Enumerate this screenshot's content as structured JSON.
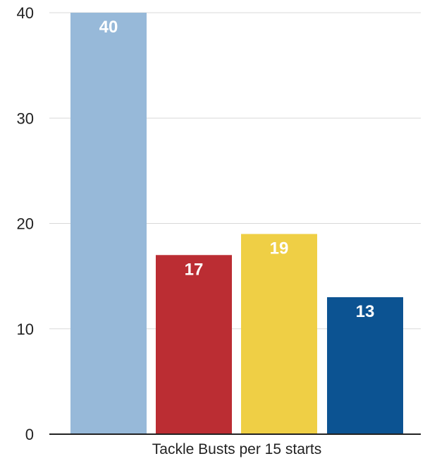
{
  "chart_data": {
    "type": "bar",
    "categories": [
      "",
      "",
      "",
      ""
    ],
    "values": [
      40,
      17,
      19,
      13
    ],
    "data_labels": [
      "40",
      "17",
      "19",
      "13"
    ],
    "colors": [
      "#97b9d9",
      "#bb2d33",
      "#efcf45",
      "#0c5392"
    ],
    "title": "",
    "xlabel": "Tackle Busts per 15 starts",
    "ylabel": "",
    "ylim": [
      0,
      40
    ],
    "yticks": [
      0,
      10,
      20,
      30,
      40
    ],
    "grid": true,
    "legend": "none"
  }
}
